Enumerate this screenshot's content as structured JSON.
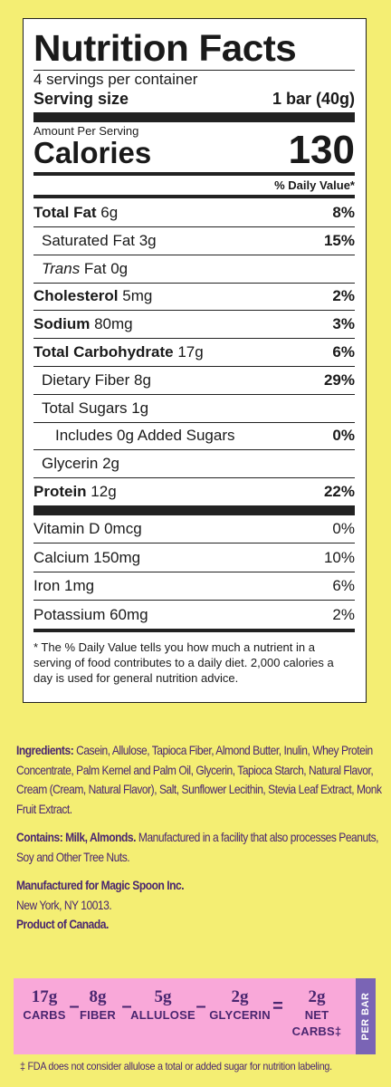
{
  "panel": {
    "title": "Nutrition Facts",
    "servings": "4 servings per container",
    "serving_size_label": "Serving size",
    "serving_size_value": "1 bar (40g)",
    "amount_per": "Amount Per Serving",
    "calories_label": "Calories",
    "calories_value": "130",
    "dv_header": "% Daily Value*",
    "nutrients": [
      {
        "bold": "Total Fat",
        "rest": " 6g",
        "dv": "8%"
      },
      {
        "bold": "",
        "rest": "Saturated Fat 3g",
        "dv": "15%"
      },
      {
        "italic": "Trans",
        "rest": " Fat 0g",
        "dv": ""
      },
      {
        "bold": "Cholesterol",
        "rest": " 5mg",
        "dv": "2%"
      },
      {
        "bold": "Sodium",
        "rest": " 80mg",
        "dv": "3%"
      },
      {
        "bold": "Total Carbohydrate",
        "rest": " 17g",
        "dv": "6%"
      },
      {
        "bold": "",
        "rest": "Dietary Fiber 8g",
        "dv": "29%"
      },
      {
        "bold": "",
        "rest": "Total Sugars 1g",
        "dv": ""
      },
      {
        "bold": "",
        "rest": "Includes 0g Added Sugars",
        "dv": "0%"
      },
      {
        "bold": "",
        "rest": "Glycerin 2g",
        "dv": ""
      },
      {
        "bold": "Protein",
        "rest": " 12g",
        "dv": "22%"
      }
    ],
    "vitamins": [
      {
        "label": "Vitamin D 0mcg",
        "dv": "0%"
      },
      {
        "label": "Calcium 150mg",
        "dv": "10%"
      },
      {
        "label": "Iron 1mg",
        "dv": "6%"
      },
      {
        "label": "Potassium 60mg",
        "dv": "2%"
      }
    ],
    "footnote": "* The % Daily Value tells you how much a nutrient in a serving of food contributes to a daily diet. 2,000 calories a day is used for general nutrition advice."
  },
  "info": {
    "ingredients_label": "Ingredients:",
    "ingredients_text": " Casein, Allulose, Tapioca Fiber, Almond Butter, Inulin, Whey Protein Concentrate, Palm Kernel and Palm Oil, Glycerin, Tapioca Starch, Natural Flavor, Cream (Cream, Natural Flavor), Salt, Sunflower Lecithin, Stevia Leaf Extract, Monk Fruit Extract.",
    "contains_label": "Contains: Milk, Almonds.",
    "contains_text": " Manufactured in a facility that also processes Peanuts, Soy and Other Tree Nuts.",
    "manufacturer_label": "Manufactured for Magic Spoon Inc.",
    "manufacturer_address": "New York, NY 10013.",
    "origin": "Product of Canada."
  },
  "banner": {
    "terms": [
      {
        "value": "17g",
        "label": "CARBS"
      },
      {
        "value": "8g",
        "label": "FIBER"
      },
      {
        "value": "5g",
        "label": "ALLULOSE"
      },
      {
        "value": "2g",
        "label": "GLYCERIN"
      },
      {
        "value": "2g",
        "label": "NET CARBS‡"
      }
    ],
    "operators": [
      "–",
      "–",
      "–",
      "="
    ],
    "per_bar": "PER BAR"
  },
  "disclaimer": "‡ FDA does not consider allulose a total or added sugar for nutrition labeling.",
  "colors": {
    "background": "#f4ee73",
    "text_purple": "#4a2670",
    "banner_pink": "#f9a8d9",
    "per_bar_purple": "#7a64b5"
  }
}
